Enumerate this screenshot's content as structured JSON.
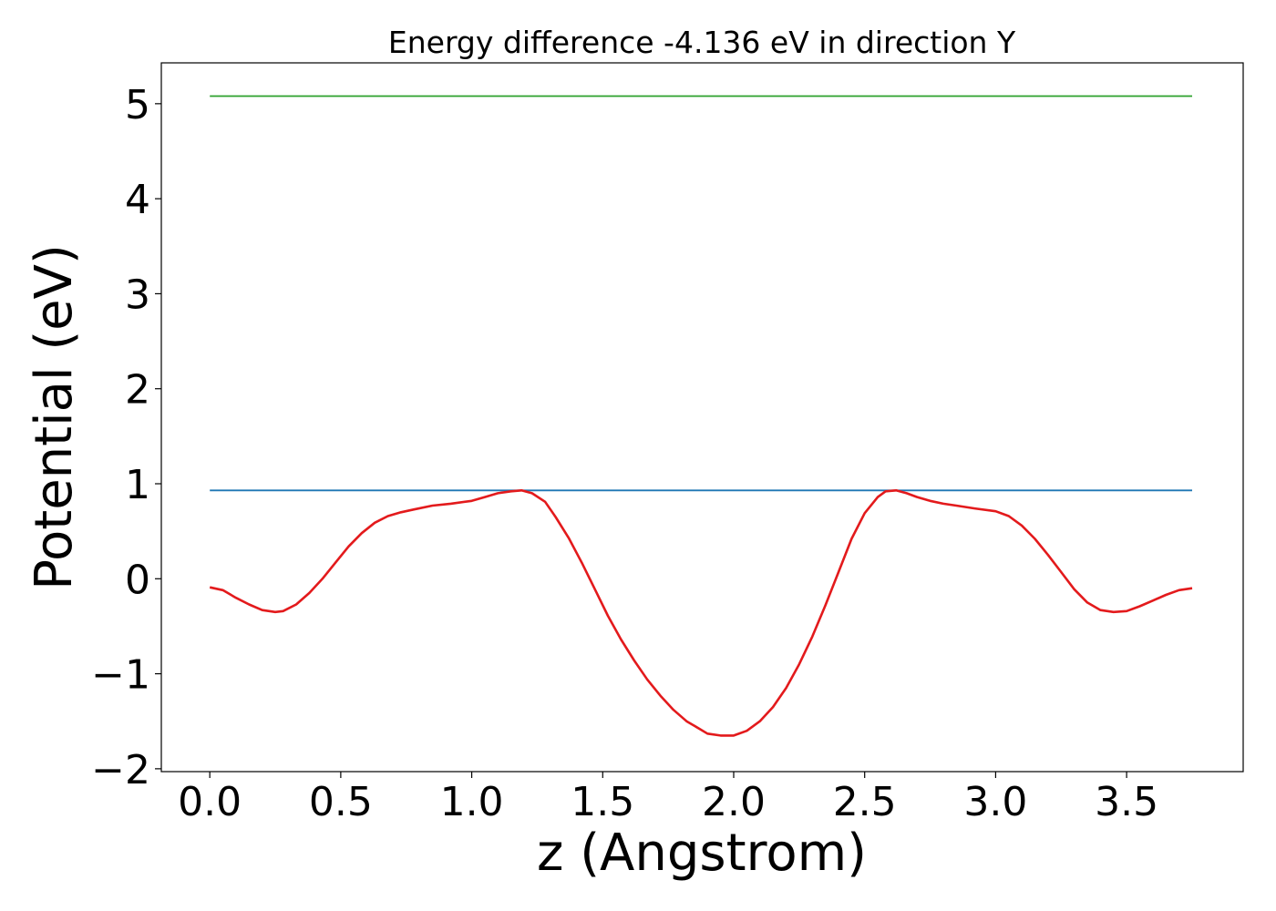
{
  "chart_data": {
    "type": "line",
    "title": "Energy difference -4.136 eV in direction Y",
    "xlabel": "z (Angstrom)",
    "ylabel": "Potential (eV)",
    "xlim": [
      -0.185,
      3.945
    ],
    "ylim": [
      -2.03,
      5.43
    ],
    "x_ticks": [
      0.0,
      0.5,
      1.0,
      1.5,
      2.0,
      2.5,
      3.0,
      3.5
    ],
    "x_tick_labels": [
      "0.0",
      "0.5",
      "1.0",
      "1.5",
      "2.0",
      "2.5",
      "3.0",
      "3.5"
    ],
    "y_ticks": [
      -2,
      -1,
      0,
      1,
      2,
      3,
      4,
      5
    ],
    "y_tick_labels": [
      "−2",
      "−1",
      "0",
      "1",
      "2",
      "3",
      "4",
      "5"
    ],
    "grid": false,
    "legend": "none",
    "series": [
      {
        "color": "#2ca02c",
        "x": [
          0.0,
          3.75
        ],
        "y": [
          5.08,
          5.08
        ]
      },
      {
        "color": "#1f77b4",
        "x": [
          0.0,
          3.75
        ],
        "y": [
          0.93,
          0.93
        ]
      },
      {
        "color": "#e31a1c",
        "x": [
          0.0,
          0.05,
          0.1,
          0.15,
          0.2,
          0.25,
          0.28,
          0.33,
          0.38,
          0.43,
          0.48,
          0.53,
          0.58,
          0.63,
          0.68,
          0.73,
          0.78,
          0.85,
          0.92,
          1.0,
          1.05,
          1.1,
          1.15,
          1.19,
          1.23,
          1.28,
          1.32,
          1.37,
          1.42,
          1.47,
          1.52,
          1.57,
          1.62,
          1.67,
          1.72,
          1.77,
          1.82,
          1.87,
          1.9,
          1.95,
          2.0,
          2.05,
          2.1,
          2.15,
          2.2,
          2.25,
          2.3,
          2.35,
          2.4,
          2.45,
          2.5,
          2.55,
          2.58,
          2.62,
          2.66,
          2.7,
          2.75,
          2.8,
          2.85,
          2.92,
          3.0,
          3.05,
          3.1,
          3.15,
          3.2,
          3.25,
          3.3,
          3.35,
          3.4,
          3.45,
          3.5,
          3.55,
          3.6,
          3.65,
          3.7,
          3.75
        ],
        "y": [
          -0.09,
          -0.12,
          -0.2,
          -0.27,
          -0.33,
          -0.35,
          -0.34,
          -0.27,
          -0.15,
          0.0,
          0.17,
          0.34,
          0.48,
          0.59,
          0.66,
          0.7,
          0.73,
          0.77,
          0.79,
          0.82,
          0.86,
          0.9,
          0.92,
          0.93,
          0.9,
          0.81,
          0.65,
          0.43,
          0.17,
          -0.11,
          -0.39,
          -0.64,
          -0.86,
          -1.06,
          -1.23,
          -1.38,
          -1.5,
          -1.58,
          -1.63,
          -1.65,
          -1.65,
          -1.6,
          -1.5,
          -1.35,
          -1.15,
          -0.9,
          -0.61,
          -0.28,
          0.07,
          0.42,
          0.69,
          0.86,
          0.92,
          0.93,
          0.9,
          0.86,
          0.82,
          0.79,
          0.77,
          0.74,
          0.71,
          0.66,
          0.56,
          0.42,
          0.25,
          0.07,
          -0.11,
          -0.25,
          -0.33,
          -0.35,
          -0.34,
          -0.29,
          -0.23,
          -0.17,
          -0.12,
          -0.1
        ]
      }
    ]
  }
}
